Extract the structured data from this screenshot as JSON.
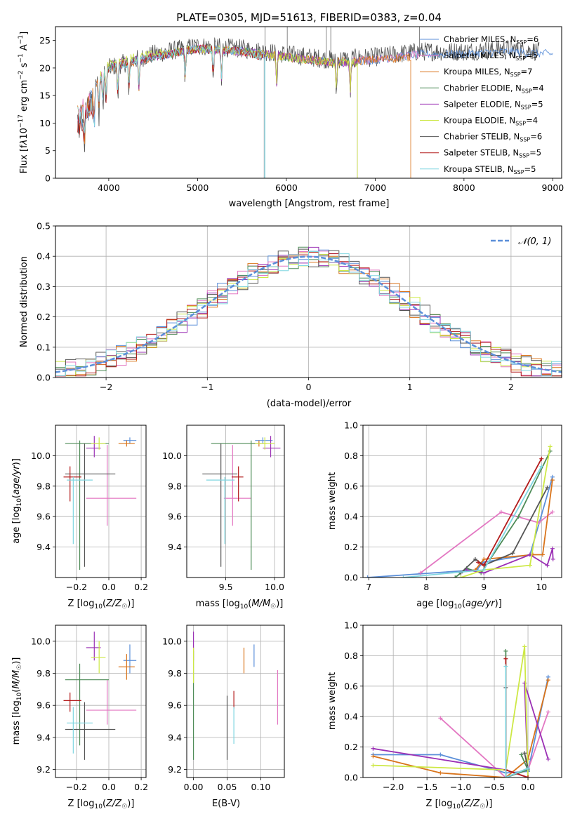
{
  "chart_data": [
    {
      "type": "line",
      "title": "PLATE=0305, MJD=51613, FIBERID=0383, z=0.04",
      "xlabel": "wavelength [Angstrom, rest frame]",
      "ylabel": "Flux [f_λ 10^-17 erg cm^-2 s^-1 A^-1]",
      "xlim": [
        3400,
        9100
      ],
      "ylim": [
        0,
        27.5
      ],
      "xticks": [
        4000,
        5000,
        6000,
        7000,
        8000,
        9000
      ],
      "yticks": [
        0,
        5,
        10,
        15,
        20,
        25
      ],
      "grid": false,
      "legend": "right",
      "series": [
        {
          "name": "Chabrier MILES, N_SSP=6",
          "color": "#5b8fd9",
          "x": [
            3650,
            4000,
            4500,
            5000,
            5500,
            6000,
            6500,
            7000,
            7500,
            8000,
            8500,
            9000
          ],
          "y": [
            13,
            20,
            22,
            23.5,
            23,
            22,
            21,
            21.5,
            22.5,
            22.5,
            23,
            22.5
          ]
        },
        {
          "name": "Salpeter MILES, N_SSP=5",
          "color": "#e377c2",
          "x": [
            3650,
            4000,
            4500,
            5000,
            5500,
            6000,
            6500,
            7000,
            7500
          ],
          "y": [
            13.5,
            20.5,
            22,
            23.5,
            23,
            22,
            21,
            21.5,
            22.5
          ]
        },
        {
          "name": "Kroupa MILES, N_SSP=7",
          "color": "#d9741b",
          "x": [
            3650,
            4000,
            4500,
            5000,
            5500,
            6000,
            6500,
            7000,
            7400
          ],
          "y": [
            13,
            20,
            22,
            23.5,
            23,
            22,
            21,
            21.5,
            22
          ]
        },
        {
          "name": "Chabrier ELODIE, N_SSP=4",
          "color": "#4f8c58",
          "x": [
            3900,
            4000,
            4500,
            5000,
            5500,
            6000,
            6500,
            6800
          ],
          "y": [
            18,
            20.5,
            22,
            23.5,
            23,
            22,
            21,
            21
          ]
        },
        {
          "name": "Salpeter ELODIE, N_SSP=5",
          "color": "#9b30b5",
          "x": [
            3900,
            4000,
            4500,
            5000,
            5500,
            6000,
            6500,
            6800
          ],
          "y": [
            18,
            20.5,
            22,
            23.5,
            23,
            22,
            21,
            21
          ]
        },
        {
          "name": "Kroupa ELODIE, N_SSP=4",
          "color": "#cde845",
          "x": [
            3900,
            4000,
            4500,
            5000,
            5500,
            6000,
            6500,
            6800
          ],
          "y": [
            18.5,
            21,
            22.5,
            23.5,
            23,
            22,
            21,
            21
          ]
        },
        {
          "name": "Chabrier STELIB, N_SSP=6",
          "color": "#555555",
          "x": [
            3650,
            4000,
            4500,
            5000,
            5500,
            6000,
            6500,
            7000,
            7500,
            8000,
            8500,
            8850
          ],
          "y": [
            12.5,
            20,
            22.5,
            24,
            23.5,
            22.5,
            21.5,
            22,
            23,
            23,
            23.5,
            23
          ]
        },
        {
          "name": "Salpeter STELIB, N_SSP=5",
          "color": "#b31b1b",
          "x": [
            3650,
            4000,
            4500,
            5000,
            5500,
            5750
          ],
          "y": [
            12.5,
            20,
            22,
            23.5,
            23,
            22
          ]
        },
        {
          "name": "Kroupa STELIB, N_SSP=5",
          "color": "#7fd6e0",
          "x": [
            3650,
            4000,
            4500,
            5000,
            5500,
            5750
          ],
          "y": [
            13,
            20,
            22,
            23.5,
            23,
            22
          ]
        }
      ]
    },
    {
      "type": "line",
      "xlabel": "(data-model)/error",
      "ylabel": "Normed distribution",
      "xlim": [
        -2.5,
        2.5
      ],
      "ylim": [
        0,
        0.5
      ],
      "xticks": [
        -2,
        -1,
        0,
        1,
        2
      ],
      "yticks": [
        0.0,
        0.1,
        0.2,
        0.3,
        0.4,
        0.5
      ],
      "grid": true,
      "legend": "top-right",
      "gaussian": {
        "name": "N(0,1)",
        "color": "#5b8fd9"
      },
      "histogram_bins": {
        "start": -2.5,
        "width": 0.1,
        "count": 50
      }
    },
    {
      "type": "scatter",
      "xlabel": "Z [log10(Z/Z☉)]",
      "ylabel": "age [log10(age/yr)]",
      "xlim": [
        -0.33,
        0.23
      ],
      "ylim": [
        9.2,
        10.2
      ],
      "xticks": [
        -0.2,
        0.0,
        0.2
      ],
      "yticks": [
        9.4,
        9.6,
        9.8,
        10.0
      ],
      "grid": true
    },
    {
      "type": "scatter",
      "xlabel": "mass [log10(M/M☉)]",
      "ylabel": "",
      "xlim": [
        9.1,
        10.1
      ],
      "ylim": [
        9.2,
        10.2
      ],
      "xticks": [
        9.5,
        10.0
      ],
      "yticks": [
        9.4,
        9.6,
        9.8,
        10.0
      ],
      "grid": true
    },
    {
      "type": "line",
      "xlabel": "age [log10(age/yr)]",
      "ylabel": "mass weight",
      "xlim": [
        6.9,
        10.35
      ],
      "ylim": [
        0,
        1.0
      ],
      "xticks": [
        7,
        8,
        9,
        10
      ],
      "yticks": [
        0.0,
        0.2,
        0.4,
        0.6,
        0.8,
        1.0
      ],
      "grid": true
    },
    {
      "type": "scatter",
      "xlabel": "Z [log10(Z/Z☉)]",
      "ylabel": "mass [log10(M/M☉)]",
      "xlim": [
        -0.33,
        0.23
      ],
      "ylim": [
        9.15,
        10.1
      ],
      "xticks": [
        -0.2,
        0.0,
        0.2
      ],
      "yticks": [
        9.2,
        9.4,
        9.6,
        9.8,
        10.0
      ],
      "grid": true
    },
    {
      "type": "scatter",
      "xlabel": "E(B-V)",
      "ylabel": "",
      "xlim": [
        -0.01,
        0.135
      ],
      "ylim": [
        9.15,
        10.1
      ],
      "xticks": [
        0.0,
        0.05,
        0.1
      ],
      "yticks": [
        9.2,
        9.4,
        9.6,
        9.8,
        10.0
      ],
      "grid": true
    },
    {
      "type": "line",
      "xlabel": "Z [log10(Z/Z☉)]",
      "ylabel": "mass weight",
      "xlim": [
        -2.45,
        0.5
      ],
      "ylim": [
        0,
        1.0
      ],
      "xticks": [
        -2.0,
        -1.5,
        -1.0,
        -0.5,
        0.0
      ],
      "yticks": [
        0.0,
        0.2,
        0.4,
        0.6,
        0.8,
        1.0
      ],
      "grid": true
    }
  ],
  "models": [
    {
      "color": "#5b8fd9",
      "Z": 0.13,
      "Zlo": 0.09,
      "Zhi": 0.17,
      "age": 10.1,
      "agelo": 10.08,
      "agehi": 10.12,
      "mass": 9.88,
      "masslo": 9.8,
      "masshi": 9.98,
      "ebv": 0.09,
      "ebvlo": 9.84,
      "ebvhi": 9.98,
      "age_curve": [
        [
          6.98,
          0.0
        ],
        [
          8.88,
          0.05
        ],
        [
          8.98,
          0.1
        ],
        [
          9.8,
          0.15
        ],
        [
          10.19,
          0.66
        ]
      ],
      "Z_curve": [
        [
          -2.3,
          0.15
        ],
        [
          -1.3,
          0.15
        ],
        [
          -0.33,
          0.03
        ],
        [
          0.0,
          0.04
        ],
        [
          0.3,
          0.66
        ]
      ]
    },
    {
      "color": "#e377c2",
      "Z": -0.01,
      "Zlo": -0.14,
      "Zhi": 0.17,
      "age": 9.72,
      "agelo": 9.54,
      "agehi": 10.07,
      "mass": 9.57,
      "masslo": 9.48,
      "masshi": 9.76,
      "ebv": 0.125,
      "ebvlo": 9.48,
      "ebvhi": 9.82,
      "age_curve": [
        [
          7.9,
          0.03
        ],
        [
          9.3,
          0.43
        ],
        [
          9.95,
          0.36
        ],
        [
          10.19,
          0.43
        ]
      ],
      "Z_curve": [
        [
          -1.3,
          0.39
        ],
        [
          -0.33,
          0.0
        ],
        [
          0.0,
          0.05
        ],
        [
          0.3,
          0.43
        ]
      ]
    },
    {
      "color": "#d9741b",
      "Z": 0.11,
      "Zlo": 0.06,
      "Zhi": 0.16,
      "age": 10.08,
      "agelo": 10.06,
      "agehi": 10.1,
      "mass": 9.84,
      "masslo": 9.76,
      "masshi": 9.92,
      "ebv": 0.075,
      "ebvlo": 9.8,
      "ebvhi": 9.96,
      "age_curve": [
        [
          8.85,
          0.05
        ],
        [
          9.0,
          0.12
        ],
        [
          9.85,
          0.15
        ],
        [
          10.02,
          0.15
        ],
        [
          10.19,
          0.64
        ]
      ],
      "Z_curve": [
        [
          -2.3,
          0.14
        ],
        [
          -1.3,
          0.03
        ],
        [
          -0.33,
          0.0
        ],
        [
          0.0,
          0.12
        ],
        [
          0.3,
          0.64
        ]
      ]
    },
    {
      "color": "#4f8c58",
      "Z": -0.18,
      "Zlo": -0.27,
      "Zhi": 0.0,
      "age": 10.08,
      "agelo": 9.25,
      "agehi": 10.1,
      "mass": 9.76,
      "masslo": 9.35,
      "masshi": 9.86,
      "ebv": 0.0,
      "ebvlo": 9.26,
      "ebvhi": 9.94,
      "age_curve": [
        [
          8.5,
          0.0
        ],
        [
          8.7,
          0.06
        ],
        [
          8.95,
          0.03
        ],
        [
          9.6,
          0.4
        ],
        [
          10.15,
          0.83
        ]
      ],
      "Z_curve": [
        [
          -0.33,
          0.83
        ],
        [
          -0.33,
          0.0
        ],
        [
          0.0,
          0.05
        ],
        [
          -0.1,
          0.15
        ]
      ]
    },
    {
      "color": "#9b30b5",
      "Z": -0.09,
      "Zlo": -0.14,
      "Zhi": -0.05,
      "age": 10.05,
      "agelo": 9.99,
      "agehi": 10.13,
      "mass": 9.96,
      "masslo": 9.88,
      "masshi": 10.06,
      "ebv": 0.0,
      "ebvlo": 9.88,
      "ebvhi": 10.06,
      "age_curve": [
        [
          8.7,
          0.05
        ],
        [
          9.0,
          0.03
        ],
        [
          9.8,
          0.15
        ],
        [
          10.1,
          0.08
        ],
        [
          10.19,
          0.19
        ],
        [
          10.2,
          0.12
        ]
      ],
      "Z_curve": [
        [
          -2.3,
          0.19
        ],
        [
          -0.33,
          0.05
        ],
        [
          0.0,
          0.0
        ],
        [
          -0.05,
          0.62
        ],
        [
          0.3,
          0.12
        ]
      ]
    },
    {
      "color": "#cde845",
      "Z": -0.06,
      "Zlo": -0.11,
      "Zhi": -0.02,
      "age": 10.08,
      "agelo": 10.04,
      "agehi": 10.12,
      "mass": 9.9,
      "masslo": 9.8,
      "masshi": 10.0,
      "ebv": 0.0,
      "ebvlo": 9.74,
      "ebvhi": 9.96,
      "age_curve": [
        [
          8.6,
          0.0
        ],
        [
          9.0,
          0.05
        ],
        [
          9.8,
          0.08
        ],
        [
          10.15,
          0.86
        ]
      ],
      "Z_curve": [
        [
          -2.3,
          0.08
        ],
        [
          -0.33,
          0.05
        ],
        [
          -0.05,
          0.86
        ],
        [
          0.0,
          0.0
        ]
      ]
    },
    {
      "color": "#555555",
      "Z": -0.15,
      "Zlo": -0.27,
      "Zhi": 0.04,
      "age": 9.88,
      "agelo": 9.27,
      "agehi": 10.08,
      "mass": 9.45,
      "masslo": 9.26,
      "masshi": 9.62,
      "ebv": 0.05,
      "ebvlo": 9.26,
      "ebvhi": 9.66,
      "age_curve": [
        [
          8.6,
          0.03
        ],
        [
          8.85,
          0.12
        ],
        [
          9.0,
          0.08
        ],
        [
          9.5,
          0.16
        ],
        [
          10.1,
          0.59
        ]
      ],
      "Z_curve": [
        [
          -0.33,
          0.59
        ],
        [
          -0.33,
          0.0
        ],
        [
          0.0,
          0.06
        ],
        [
          -0.05,
          0.16
        ]
      ]
    },
    {
      "color": "#b31b1b",
      "Z": -0.24,
      "Zlo": -0.28,
      "Zhi": -0.17,
      "age": 9.86,
      "agelo": 9.7,
      "agehi": 9.93,
      "mass": 9.63,
      "masslo": 9.56,
      "masshi": 9.68,
      "ebv": 0.06,
      "ebvlo": 9.58,
      "ebvhi": 9.69,
      "age_curve": [
        [
          8.9,
          0.1
        ],
        [
          9.0,
          0.08
        ],
        [
          10.0,
          0.78
        ]
      ],
      "Z_curve": [
        [
          -0.33,
          0.78
        ],
        [
          -0.33,
          0.05
        ],
        [
          0.0,
          0.0
        ]
      ]
    },
    {
      "color": "#7fd6e0",
      "Z": -0.22,
      "Zlo": -0.26,
      "Zhi": -0.1,
      "age": 9.84,
      "agelo": 9.42,
      "agehi": 9.86,
      "mass": 9.49,
      "masslo": 9.3,
      "masshi": 9.59,
      "ebv": 0.06,
      "ebvlo": 9.36,
      "ebvhi": 9.59,
      "age_curve": [
        [
          7.6,
          0.0
        ],
        [
          9.0,
          0.05
        ],
        [
          10.0,
          0.73
        ]
      ],
      "Z_curve": [
        [
          -0.33,
          0.73
        ],
        [
          -0.33,
          0.0
        ],
        [
          0.0,
          0.06
        ]
      ]
    }
  ]
}
